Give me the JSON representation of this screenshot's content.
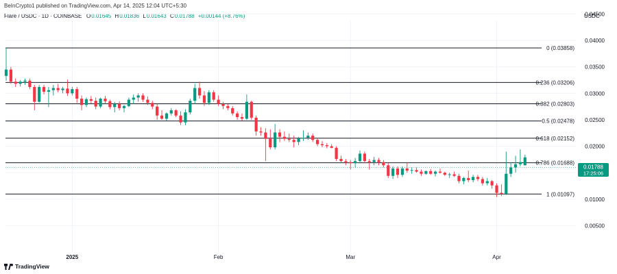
{
  "attribution": "BeInCrypto1 published on TradingView.com, Apr 14, 2025 12:04 UTC+5:30",
  "symbol": "Flare / USDC · 1D · COINBASE",
  "ohlc": {
    "o_label": "O",
    "o_value": "0.01645",
    "h_label": "H",
    "h_value": "0.01836",
    "l_label": "L",
    "l_value": "0.01643",
    "c_label": "C",
    "c_value": "0.01788",
    "change": "+0.00144 (+8.76%)"
  },
  "currency": "USDC",
  "brand": "TradingView",
  "colors": {
    "up": "#089981",
    "down": "#f23645",
    "fib_line": "#131722",
    "text": "#131722",
    "grid": "#f0f3fa"
  },
  "chart_data": {
    "type": "candlestick",
    "y_axis": {
      "ylim": [
        0.0,
        0.048
      ],
      "ticks": [
        "0.04500",
        "0.04000",
        "0.03500",
        "0.03000",
        "0.02500",
        "0.02000",
        "0.01500",
        "0.01000",
        "0.00500"
      ]
    },
    "x_axis": {
      "tick_labels": [
        "2025",
        "Feb",
        "Mar",
        "Apr"
      ],
      "tick_days": [
        14,
        45,
        73,
        104
      ]
    },
    "fib_levels": [
      {
        "label": "0 (0.03858)",
        "value": 0.03858
      },
      {
        "label": "0.236 (0.03206)",
        "value": 0.03206
      },
      {
        "label": "0.382 (0.02803)",
        "value": 0.02803
      },
      {
        "label": "0.5 (0.02478)",
        "value": 0.02478
      },
      {
        "label": "0.618 (0.02152)",
        "value": 0.02152
      },
      {
        "label": "0.786 (0.01688)",
        "value": 0.01688
      },
      {
        "label": "1 (0.01097)",
        "value": 0.01097
      }
    ],
    "price_badge": {
      "value": "0.01788",
      "countdown": "17:25:06"
    },
    "candles": [
      [
        0.0333,
        0.0386,
        0.0324,
        0.0345
      ],
      [
        0.0345,
        0.035,
        0.0318,
        0.0322
      ],
      [
        0.0322,
        0.0328,
        0.0312,
        0.0318
      ],
      [
        0.0318,
        0.0325,
        0.0313,
        0.0322
      ],
      [
        0.0322,
        0.0328,
        0.0316,
        0.0324
      ],
      [
        0.0324,
        0.0328,
        0.0308,
        0.0312
      ],
      [
        0.0312,
        0.0316,
        0.0268,
        0.0284
      ],
      [
        0.0284,
        0.0316,
        0.0282,
        0.0312
      ],
      [
        0.0312,
        0.0316,
        0.0298,
        0.0303
      ],
      [
        0.0303,
        0.0312,
        0.0274,
        0.0306
      ],
      [
        0.0306,
        0.0316,
        0.0296,
        0.031
      ],
      [
        0.031,
        0.0318,
        0.0302,
        0.0306
      ],
      [
        0.0306,
        0.0312,
        0.03,
        0.0309
      ],
      [
        0.0309,
        0.0326,
        0.0295,
        0.03
      ],
      [
        0.03,
        0.0312,
        0.0296,
        0.0308
      ],
      [
        0.0308,
        0.0312,
        0.0282,
        0.029
      ],
      [
        0.029,
        0.0296,
        0.0268,
        0.0278
      ],
      [
        0.0278,
        0.0292,
        0.0274,
        0.0289
      ],
      [
        0.0289,
        0.0295,
        0.0281,
        0.0286
      ],
      [
        0.0286,
        0.0292,
        0.027,
        0.0275
      ],
      [
        0.0275,
        0.0292,
        0.0272,
        0.029
      ],
      [
        0.029,
        0.0295,
        0.028,
        0.0285
      ],
      [
        0.0285,
        0.0288,
        0.027,
        0.0274
      ],
      [
        0.0274,
        0.0284,
        0.0264,
        0.028
      ],
      [
        0.028,
        0.0285,
        0.0268,
        0.0272
      ],
      [
        0.0272,
        0.0278,
        0.0264,
        0.0276
      ],
      [
        0.0276,
        0.0292,
        0.0274,
        0.0288
      ],
      [
        0.0288,
        0.0298,
        0.028,
        0.0292
      ],
      [
        0.0292,
        0.03,
        0.0284,
        0.0296
      ],
      [
        0.0296,
        0.03,
        0.0284,
        0.0288
      ],
      [
        0.0288,
        0.0294,
        0.0278,
        0.0282
      ],
      [
        0.0282,
        0.0286,
        0.027,
        0.0275
      ],
      [
        0.0275,
        0.028,
        0.025,
        0.0258
      ],
      [
        0.0258,
        0.0268,
        0.025,
        0.0252
      ],
      [
        0.0252,
        0.0264,
        0.0248,
        0.0262
      ],
      [
        0.0262,
        0.0272,
        0.0258,
        0.0268
      ],
      [
        0.0268,
        0.027,
        0.0255,
        0.0258
      ],
      [
        0.0258,
        0.0266,
        0.024,
        0.0245
      ],
      [
        0.0245,
        0.027,
        0.024,
        0.0264
      ],
      [
        0.0264,
        0.029,
        0.026,
        0.0286
      ],
      [
        0.0286,
        0.0318,
        0.028,
        0.031
      ],
      [
        0.031,
        0.0322,
        0.029,
        0.0296
      ],
      [
        0.0296,
        0.0304,
        0.0276,
        0.0282
      ],
      [
        0.0282,
        0.0306,
        0.0278,
        0.0302
      ],
      [
        0.0302,
        0.0306,
        0.0284,
        0.0288
      ],
      [
        0.0288,
        0.0296,
        0.0276,
        0.028
      ],
      [
        0.028,
        0.0284,
        0.027,
        0.0276
      ],
      [
        0.0276,
        0.028,
        0.0268,
        0.0272
      ],
      [
        0.0272,
        0.0276,
        0.0258,
        0.0262
      ],
      [
        0.0262,
        0.0266,
        0.025,
        0.0255
      ],
      [
        0.0255,
        0.0262,
        0.0248,
        0.0252
      ],
      [
        0.0252,
        0.0298,
        0.025,
        0.0284
      ],
      [
        0.0284,
        0.0286,
        0.025,
        0.0254
      ],
      [
        0.0254,
        0.0258,
        0.022,
        0.0228
      ],
      [
        0.0228,
        0.0236,
        0.022,
        0.0226
      ],
      [
        0.0226,
        0.0234,
        0.0172,
        0.0214
      ],
      [
        0.0214,
        0.0232,
        0.0194,
        0.0198
      ],
      [
        0.0198,
        0.0242,
        0.0194,
        0.0226
      ],
      [
        0.0226,
        0.0232,
        0.0208,
        0.0218
      ],
      [
        0.0218,
        0.0228,
        0.021,
        0.0214
      ],
      [
        0.0214,
        0.0224,
        0.0208,
        0.0212
      ],
      [
        0.0212,
        0.022,
        0.0198,
        0.0208
      ],
      [
        0.0208,
        0.0218,
        0.0202,
        0.0215
      ],
      [
        0.0215,
        0.023,
        0.021,
        0.0216
      ],
      [
        0.0216,
        0.0226,
        0.0212,
        0.022
      ],
      [
        0.022,
        0.0224,
        0.0208,
        0.0212
      ],
      [
        0.0212,
        0.0215,
        0.02,
        0.0204
      ],
      [
        0.0204,
        0.021,
        0.0198,
        0.0202
      ],
      [
        0.0202,
        0.0206,
        0.0196,
        0.02
      ],
      [
        0.02,
        0.0204,
        0.0196,
        0.0197
      ],
      [
        0.0197,
        0.02,
        0.0172,
        0.0176
      ],
      [
        0.0176,
        0.0182,
        0.0168,
        0.0172
      ],
      [
        0.0172,
        0.0176,
        0.0164,
        0.017
      ],
      [
        0.017,
        0.0174,
        0.0156,
        0.0168
      ],
      [
        0.0168,
        0.0178,
        0.016,
        0.0172
      ],
      [
        0.0172,
        0.0192,
        0.0168,
        0.0186
      ],
      [
        0.0186,
        0.019,
        0.0168,
        0.0172
      ],
      [
        0.0172,
        0.0176,
        0.0156,
        0.017
      ],
      [
        0.017,
        0.018,
        0.0164,
        0.0174
      ],
      [
        0.0174,
        0.0178,
        0.0164,
        0.017
      ],
      [
        0.017,
        0.0174,
        0.016,
        0.0164
      ],
      [
        0.0164,
        0.0168,
        0.014,
        0.0144
      ],
      [
        0.0144,
        0.0162,
        0.0138,
        0.0158
      ],
      [
        0.0158,
        0.0162,
        0.014,
        0.0146
      ],
      [
        0.0146,
        0.0162,
        0.0142,
        0.0158
      ],
      [
        0.0158,
        0.017,
        0.015,
        0.0154
      ],
      [
        0.0154,
        0.016,
        0.0148,
        0.0155
      ],
      [
        0.0155,
        0.016,
        0.015,
        0.0152
      ],
      [
        0.0152,
        0.0156,
        0.0144,
        0.0148
      ],
      [
        0.0148,
        0.0154,
        0.0146,
        0.0153
      ],
      [
        0.0153,
        0.0157,
        0.0146,
        0.0148
      ],
      [
        0.0148,
        0.0154,
        0.0143,
        0.0152
      ],
      [
        0.0152,
        0.0158,
        0.0148,
        0.015
      ],
      [
        0.015,
        0.0152,
        0.0144,
        0.0146
      ],
      [
        0.0146,
        0.015,
        0.014,
        0.0147
      ],
      [
        0.0147,
        0.0152,
        0.0142,
        0.0144
      ],
      [
        0.0144,
        0.0148,
        0.013,
        0.0134
      ],
      [
        0.0134,
        0.0142,
        0.0128,
        0.014
      ],
      [
        0.014,
        0.0154,
        0.0132,
        0.0136
      ],
      [
        0.0136,
        0.0146,
        0.0132,
        0.0142
      ],
      [
        0.0142,
        0.0146,
        0.0134,
        0.0138
      ],
      [
        0.0138,
        0.0142,
        0.0126,
        0.013
      ],
      [
        0.013,
        0.014,
        0.0126,
        0.0134
      ],
      [
        0.0134,
        0.0136,
        0.012,
        0.0126
      ],
      [
        0.0126,
        0.013,
        0.0104,
        0.0112
      ],
      [
        0.0112,
        0.0128,
        0.0106,
        0.011
      ],
      [
        0.011,
        0.019,
        0.0108,
        0.0148
      ],
      [
        0.0148,
        0.017,
        0.0142,
        0.016
      ],
      [
        0.016,
        0.0182,
        0.015,
        0.0166
      ],
      [
        0.0166,
        0.0194,
        0.0162,
        0.017
      ],
      [
        0.0164,
        0.0184,
        0.0164,
        0.0179
      ]
    ]
  }
}
